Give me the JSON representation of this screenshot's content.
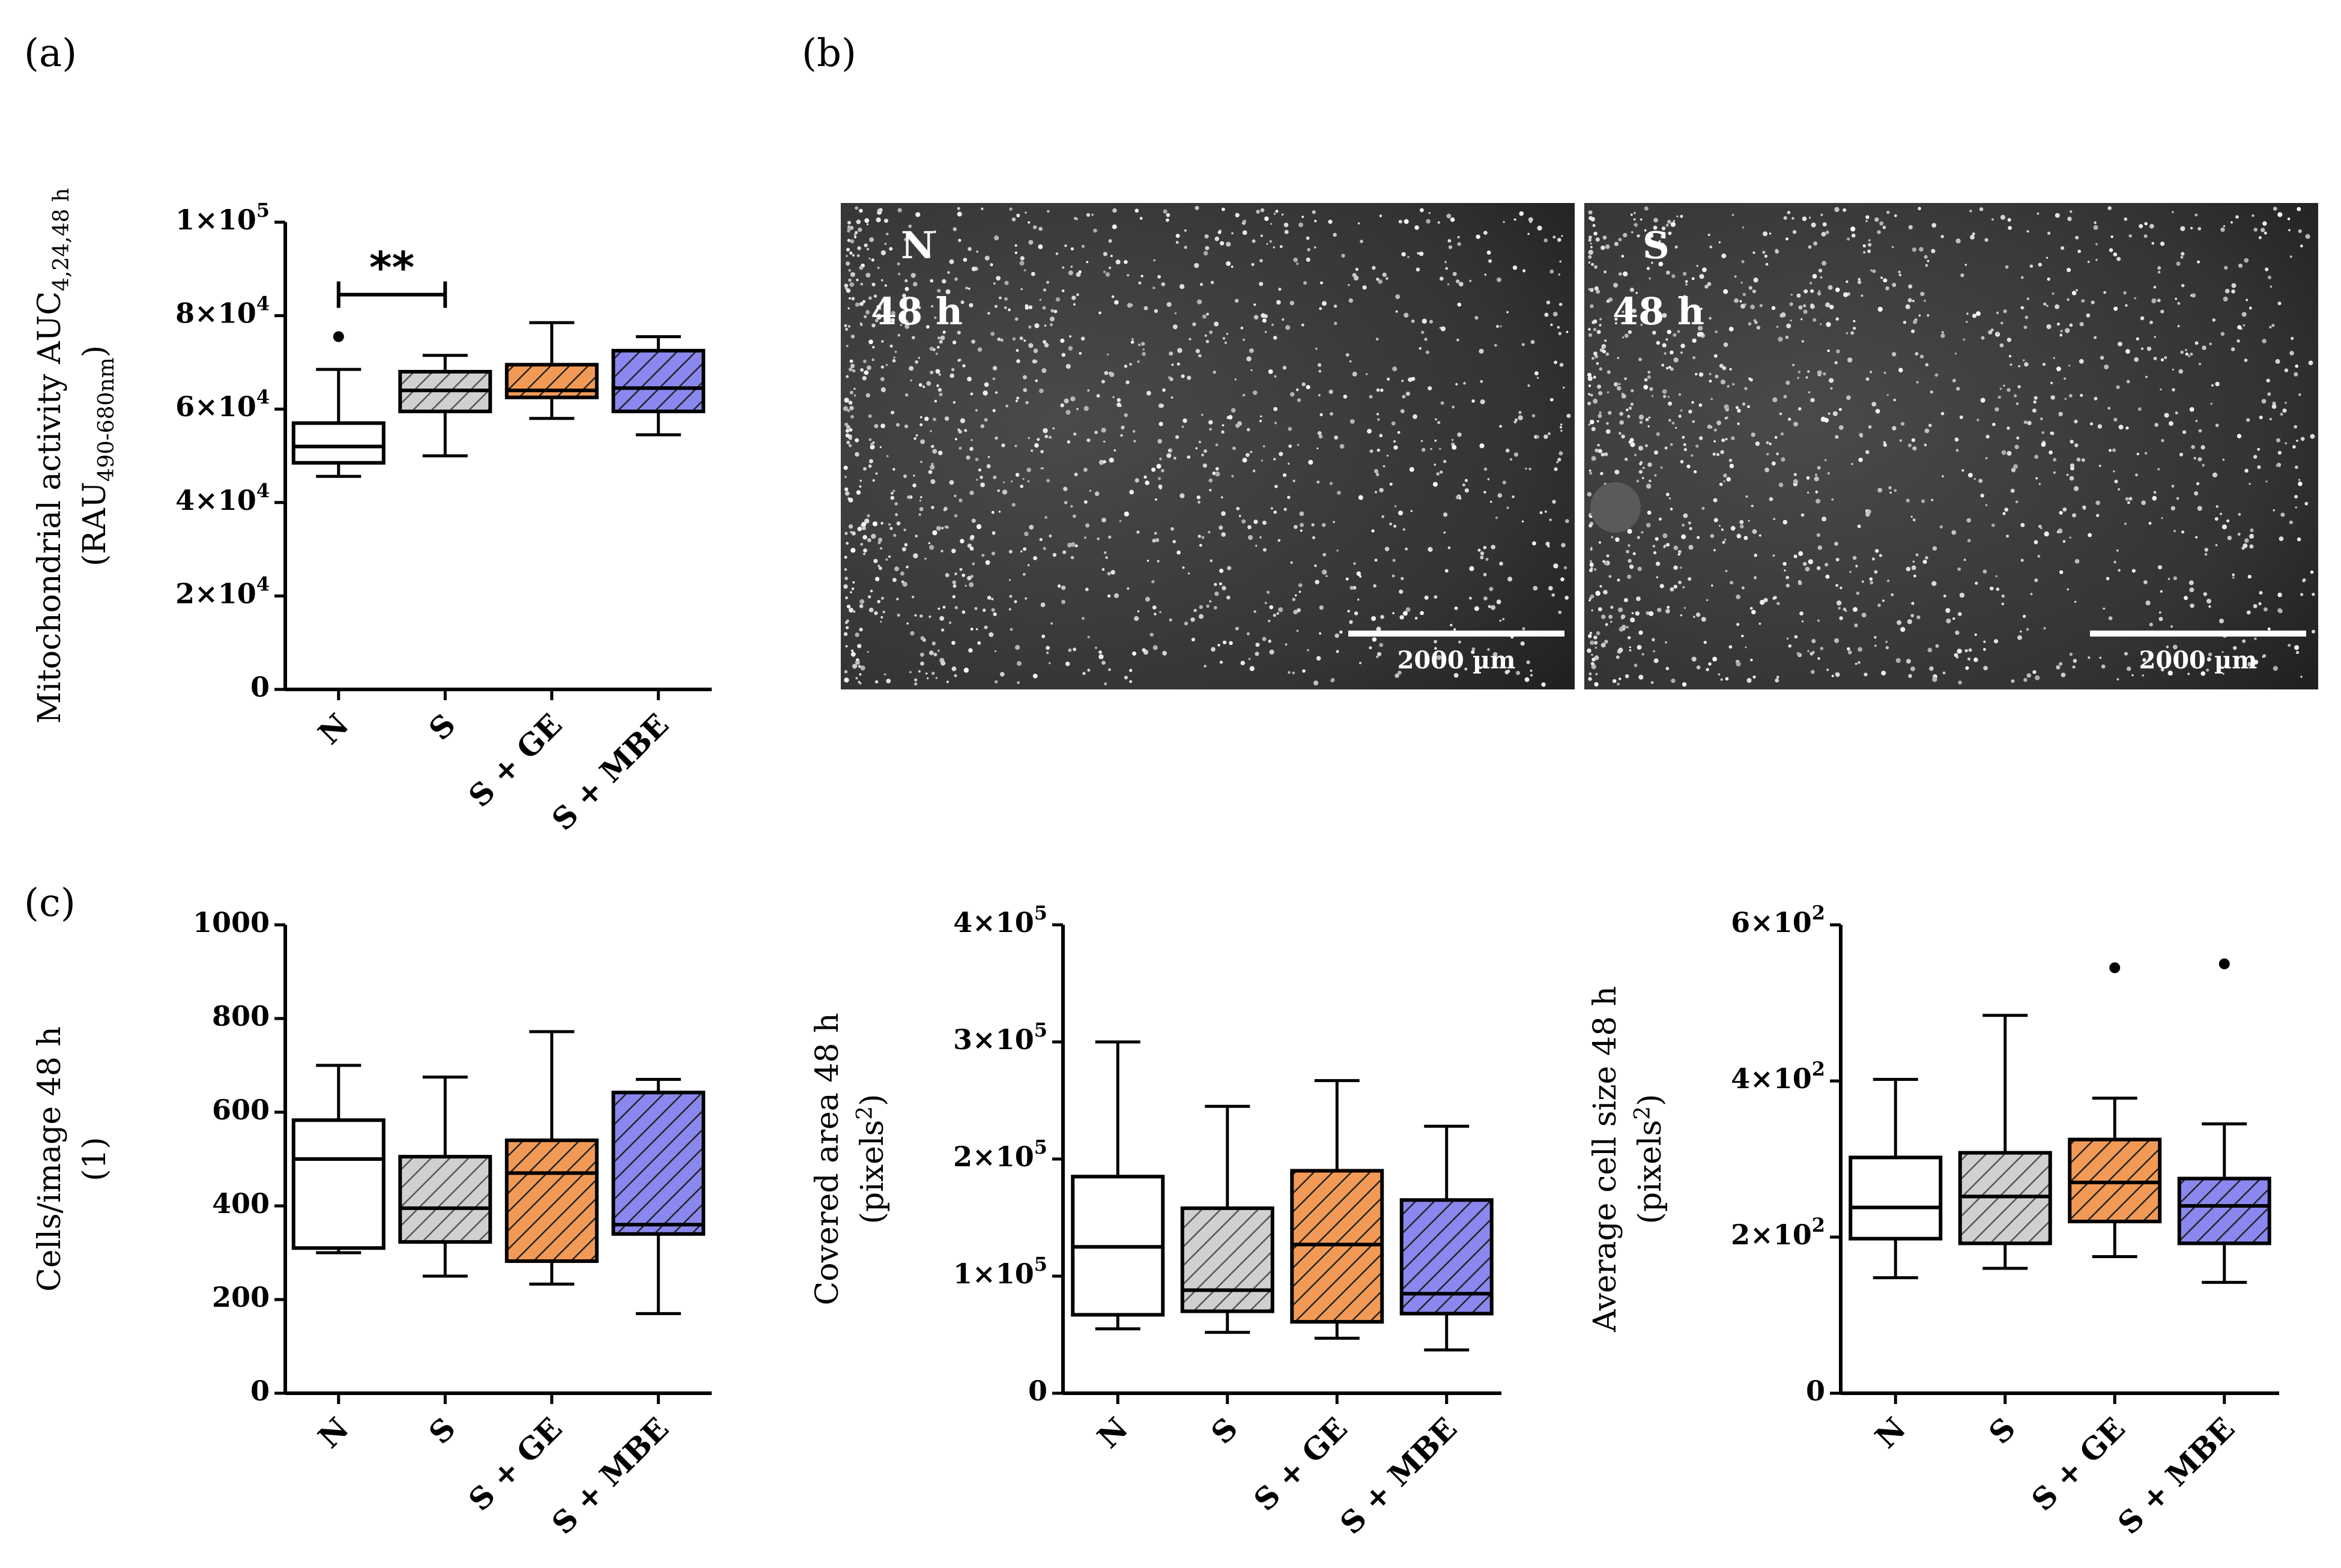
{
  "panels": {
    "a": "(a)",
    "b": "(b)",
    "c": "(c)"
  },
  "colors": {
    "N": "#ffffff",
    "S": "#d0d0d0",
    "S + GE": "#f29a55",
    "S + MBE": "#8a88ee",
    "stroke": "#000000"
  },
  "micrographs": [
    {
      "group": "N",
      "time": "48 h",
      "scale_bar": "2000 µm"
    },
    {
      "group": "S",
      "time": "48 h",
      "scale_bar": "2000 µm"
    }
  ],
  "chart_data": [
    {
      "id": "mito",
      "type": "box",
      "categories": [
        "N",
        "S",
        "S + GE",
        "S + MBE"
      ],
      "ylabel_line1": "Mitochondrial activity AUC",
      "ylabel_line1_sub": "4,24,48 h",
      "ylabel_line2_pre": "(RAU",
      "ylabel_line2_sub": "490-680nm",
      "ylabel_line2_post": ")",
      "ylim": [
        0,
        100000
      ],
      "yticks": [
        0,
        20000,
        40000,
        60000,
        80000,
        100000
      ],
      "ytick_labels": [
        {
          "text": "0",
          "sup": ""
        },
        {
          "text": "2×10",
          "sup": "4"
        },
        {
          "text": "4×10",
          "sup": "4"
        },
        {
          "text": "6×10",
          "sup": "4"
        },
        {
          "text": "8×10",
          "sup": "4"
        },
        {
          "text": "1×10",
          "sup": "5"
        }
      ],
      "boxes": [
        {
          "min": 45600,
          "q1": 48500,
          "median": 52000,
          "q3": 57000,
          "max": 68500,
          "outliers": [
            75500
          ]
        },
        {
          "min": 50000,
          "q1": 59500,
          "median": 64000,
          "q3": 68000,
          "max": 71500,
          "outliers": []
        },
        {
          "min": 58000,
          "q1": 62500,
          "median": 64000,
          "q3": 69500,
          "max": 78500,
          "outliers": []
        },
        {
          "min": 54500,
          "q1": 59500,
          "median": 64500,
          "q3": 72500,
          "max": 75500,
          "outliers": []
        }
      ],
      "significance": [
        {
          "from": 0,
          "to": 1,
          "y": 84500,
          "label": "**"
        }
      ]
    },
    {
      "id": "cells",
      "type": "box",
      "categories": [
        "N",
        "S",
        "S + GE",
        "S + MBE"
      ],
      "ylabel_line1": "Cells/image 48 h",
      "ylabel_line2": "(1)",
      "ylim": [
        0,
        1000
      ],
      "yticks": [
        0,
        200,
        400,
        600,
        800,
        1000
      ],
      "ytick_labels": [
        {
          "text": "0",
          "sup": ""
        },
        {
          "text": "200",
          "sup": ""
        },
        {
          "text": "400",
          "sup": ""
        },
        {
          "text": "600",
          "sup": ""
        },
        {
          "text": "800",
          "sup": ""
        },
        {
          "text": "1000",
          "sup": ""
        }
      ],
      "boxes": [
        {
          "min": 300,
          "q1": 310,
          "median": 500,
          "q3": 583,
          "max": 700,
          "outliers": []
        },
        {
          "min": 250,
          "q1": 323,
          "median": 395,
          "q3": 505,
          "max": 675,
          "outliers": []
        },
        {
          "min": 233,
          "q1": 282,
          "median": 470,
          "q3": 540,
          "max": 772,
          "outliers": []
        },
        {
          "min": 170,
          "q1": 340,
          "median": 360,
          "q3": 642,
          "max": 670,
          "outliers": []
        }
      ]
    },
    {
      "id": "area",
      "type": "box",
      "categories": [
        "N",
        "S",
        "S + GE",
        "S + MBE"
      ],
      "ylabel_line1": "Covered area 48 h",
      "ylabel_line2_pre": "(pixels",
      "ylabel_line2_sup": "2",
      "ylabel_line2_post": ")",
      "ylim": [
        0,
        400000
      ],
      "yticks": [
        0,
        100000,
        200000,
        300000,
        400000
      ],
      "ytick_labels": [
        {
          "text": "0",
          "sup": ""
        },
        {
          "text": "1×10",
          "sup": "5"
        },
        {
          "text": "2×10",
          "sup": "5"
        },
        {
          "text": "3×10",
          "sup": "5"
        },
        {
          "text": "4×10",
          "sup": "5"
        }
      ],
      "boxes": [
        {
          "min": 55000,
          "q1": 67000,
          "median": 125000,
          "q3": 185000,
          "max": 300000,
          "outliers": []
        },
        {
          "min": 52000,
          "q1": 70000,
          "median": 88000,
          "q3": 158000,
          "max": 245000,
          "outliers": []
        },
        {
          "min": 47000,
          "q1": 61000,
          "median": 127000,
          "q3": 190000,
          "max": 267000,
          "outliers": []
        },
        {
          "min": 37000,
          "q1": 68000,
          "median": 85000,
          "q3": 165000,
          "max": 228000,
          "outliers": []
        }
      ]
    },
    {
      "id": "cellsize",
      "type": "box",
      "categories": [
        "N",
        "S",
        "S + GE",
        "S + MBE"
      ],
      "ylabel_line1": "Average cell size 48 h",
      "ylabel_line2_pre": "(pixels",
      "ylabel_line2_sup": "2",
      "ylabel_line2_post": ")",
      "ylim": [
        0,
        600
      ],
      "yticks": [
        0,
        200,
        400,
        600
      ],
      "ytick_labels": [
        {
          "text": "0",
          "sup": ""
        },
        {
          "text": "2×10",
          "sup": "2"
        },
        {
          "text": "4×10",
          "sup": "2"
        },
        {
          "text": "6×10",
          "sup": "2"
        }
      ],
      "boxes": [
        {
          "min": 148,
          "q1": 198,
          "median": 238,
          "q3": 302,
          "max": 402,
          "outliers": []
        },
        {
          "min": 160,
          "q1": 192,
          "median": 252,
          "q3": 308,
          "max": 484,
          "outliers": []
        },
        {
          "min": 175,
          "q1": 220,
          "median": 270,
          "q3": 325,
          "max": 378,
          "outliers": [
            545
          ]
        },
        {
          "min": 142,
          "q1": 192,
          "median": 240,
          "q3": 275,
          "max": 345,
          "outliers": [
            550
          ]
        }
      ]
    }
  ]
}
